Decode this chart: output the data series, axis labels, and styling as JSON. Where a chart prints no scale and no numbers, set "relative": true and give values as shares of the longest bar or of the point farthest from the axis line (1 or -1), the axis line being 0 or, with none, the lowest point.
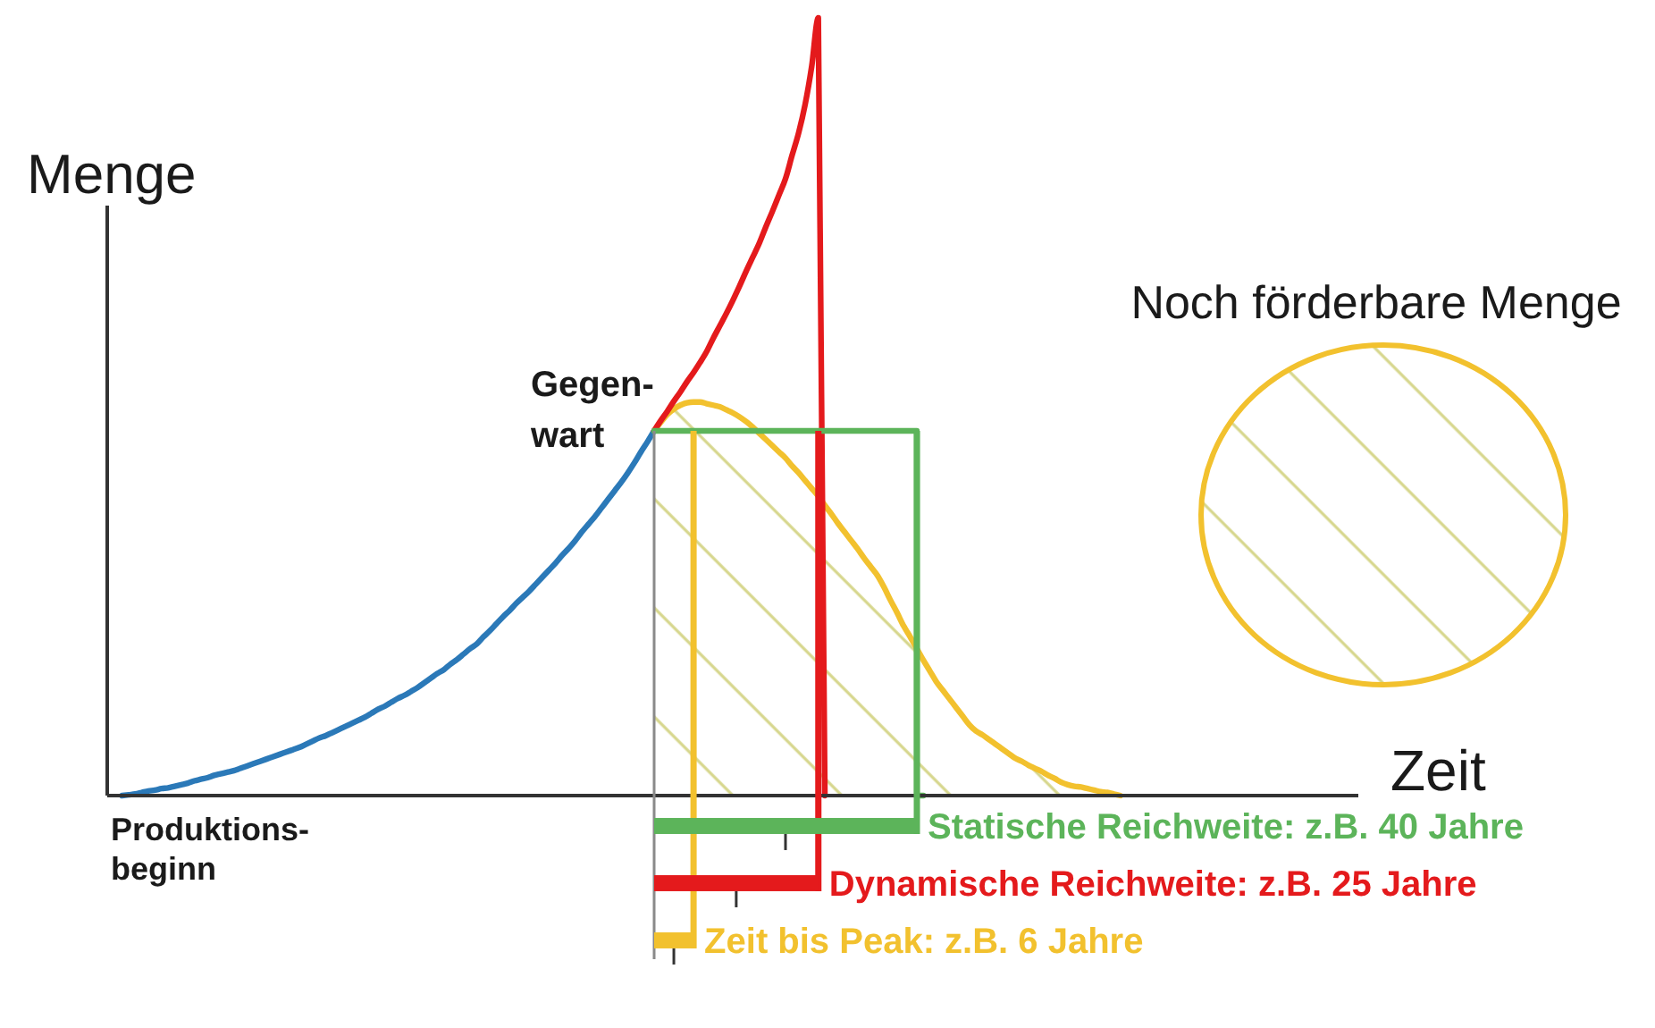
{
  "chart_data": [
    {
      "type": "line",
      "relative": true,
      "xlabel": "Zeit",
      "ylabel": "Menge",
      "categories": [
        null,
        null,
        null,
        null,
        null,
        null,
        null,
        null,
        null,
        null,
        null,
        null,
        null,
        null,
        null,
        null,
        null,
        null,
        null,
        null,
        null,
        null,
        null,
        null,
        null,
        null,
        null,
        null,
        null,
        null,
        null,
        null,
        null,
        null,
        null,
        null,
        null,
        null,
        null,
        null,
        null,
        null,
        null,
        null,
        null,
        null,
        null,
        null,
        null,
        null,
        null,
        null,
        null,
        null,
        null,
        null,
        null,
        null,
        null,
        null,
        null,
        null,
        null,
        null,
        null,
        null,
        null,
        null,
        null,
        null,
        null,
        null,
        null,
        null,
        null,
        null,
        null,
        null,
        null,
        null,
        null,
        null,
        null,
        null,
        null,
        null,
        null,
        null,
        null,
        null,
        null,
        null,
        null,
        null,
        null,
        null,
        null,
        null,
        null,
        null,
        null,
        null,
        null,
        null,
        null,
        null,
        null,
        null,
        null,
        null,
        null,
        null,
        null,
        null,
        null,
        null,
        null,
        null,
        null,
        null,
        null,
        null,
        null,
        null,
        null,
        null,
        null,
        null,
        null,
        null,
        null,
        null,
        null,
        null,
        null,
        null,
        null,
        null,
        null,
        null,
        null,
        null,
        null,
        null,
        null,
        null,
        null,
        null,
        null,
        null,
        null,
        null,
        null,
        null
      ],
      "series": [
        {
          "type": "line",
          "color": "#2b79b8",
          "values": [
            null,
            0,
            0.001,
            0.002,
            0.004,
            0.006,
            0.007,
            0.009,
            0.01,
            0.012,
            0.014,
            0.016,
            0.019,
            0.021,
            0.023,
            0.026,
            0.028,
            0.03,
            0.032,
            0.035,
            0.038,
            0.041,
            0.044,
            0.047,
            0.05,
            0.053,
            0.056,
            0.059,
            0.062,
            0.066,
            0.07,
            0.074,
            0.077,
            0.081,
            0.085,
            0.089,
            0.093,
            0.097,
            0.101,
            0.106,
            0.111,
            0.115,
            0.12,
            0.125,
            0.129,
            0.134,
            0.139,
            0.145,
            0.151,
            0.157,
            0.162,
            0.169,
            0.175,
            0.182,
            0.189,
            0.195,
            0.204,
            0.212,
            0.221,
            0.23,
            0.238,
            0.247,
            0.255,
            0.263,
            0.272,
            0.281,
            0.29,
            0.299,
            0.309,
            0.318,
            0.328,
            0.339,
            0.349,
            0.359,
            0.37,
            0.381,
            0.392,
            0.403,
            0.415,
            0.428,
            0.442,
            0.455,
            0.469,
            null,
            null,
            null,
            null,
            null,
            null,
            null,
            null,
            null,
            null,
            null,
            null,
            null,
            null,
            null,
            null,
            null,
            null,
            null,
            null,
            null,
            null,
            null,
            null,
            null,
            null,
            null,
            null,
            null,
            null,
            null,
            null,
            null,
            null,
            null,
            null,
            null,
            null,
            null,
            null,
            null,
            null,
            null,
            null,
            null,
            null,
            null,
            null,
            null,
            null,
            null,
            null,
            null,
            null,
            null,
            null,
            null,
            null,
            null,
            null,
            null,
            null,
            null,
            null,
            null,
            null,
            null,
            null,
            null,
            null,
            null
          ]
        },
        {
          "type": "line",
          "color": "#e41a1c",
          "values": [
            null,
            null,
            null,
            null,
            null,
            null,
            null,
            null,
            null,
            null,
            null,
            null,
            null,
            null,
            null,
            null,
            null,
            null,
            null,
            null,
            null,
            null,
            null,
            null,
            null,
            null,
            null,
            null,
            null,
            null,
            null,
            null,
            null,
            null,
            null,
            null,
            null,
            null,
            null,
            null,
            null,
            null,
            null,
            null,
            null,
            null,
            null,
            null,
            null,
            null,
            null,
            null,
            null,
            null,
            null,
            null,
            null,
            null,
            null,
            null,
            null,
            null,
            null,
            null,
            null,
            null,
            null,
            null,
            null,
            null,
            null,
            null,
            null,
            null,
            null,
            null,
            null,
            null,
            null,
            null,
            null,
            null,
            0.469,
            0.482,
            0.494,
            0.507,
            0.519,
            0.532,
            0.544,
            0.557,
            0.571,
            0.588,
            0.604,
            0.62,
            0.637,
            0.655,
            0.674,
            0.692,
            0.71,
            0.731,
            0.751,
            0.772,
            0.793,
            0.823,
            0.852,
            0.889,
            0.938,
            1,
            0,
            null,
            null,
            null,
            null,
            null,
            null,
            null,
            null,
            null,
            null,
            null,
            null,
            null,
            null,
            null,
            null,
            null,
            null,
            null,
            null,
            null,
            null,
            null,
            null,
            null,
            null,
            null,
            null,
            null,
            null,
            null,
            null,
            null,
            null,
            null,
            null,
            null,
            null,
            null,
            null,
            null,
            null,
            null,
            null,
            null
          ]
        },
        {
          "type": "area",
          "color": "#f2c12e",
          "values": [
            null,
            null,
            null,
            null,
            null,
            null,
            null,
            null,
            null,
            null,
            null,
            null,
            null,
            null,
            null,
            null,
            null,
            null,
            null,
            null,
            null,
            null,
            null,
            null,
            null,
            null,
            null,
            null,
            null,
            null,
            null,
            null,
            null,
            null,
            null,
            null,
            null,
            null,
            null,
            null,
            null,
            null,
            null,
            null,
            null,
            null,
            null,
            null,
            null,
            null,
            null,
            null,
            null,
            null,
            null,
            null,
            null,
            null,
            null,
            null,
            null,
            null,
            null,
            null,
            null,
            null,
            null,
            null,
            null,
            null,
            null,
            null,
            null,
            null,
            null,
            null,
            null,
            null,
            null,
            null,
            null,
            null,
            0.469,
            0.48,
            0.49,
            0.497,
            0.502,
            0.505,
            0.506,
            0.506,
            0.504,
            0.502,
            0.5,
            0.496,
            0.492,
            0.487,
            0.481,
            0.474,
            0.466,
            0.458,
            0.45,
            0.442,
            0.434,
            0.424,
            0.415,
            0.405,
            0.395,
            0.385,
            0.373,
            0.362,
            0.35,
            0.339,
            0.328,
            0.317,
            0.305,
            0.294,
            0.283,
            0.268,
            0.251,
            0.235,
            0.218,
            0.204,
            0.189,
            0.174,
            0.16,
            0.146,
            0.135,
            0.124,
            0.113,
            0.102,
            0.091,
            0.083,
            0.078,
            0.072,
            0.066,
            0.06,
            0.054,
            0.048,
            0.044,
            0.039,
            0.035,
            0.031,
            0.026,
            0.022,
            0.017,
            0.014,
            0.012,
            0.011,
            0.009,
            0.007,
            0.005,
            0.004,
            0.002,
            0
          ]
        },
        {
          "type": "step",
          "color": "#5cb45a",
          "values": [
            null,
            null,
            null,
            null,
            null,
            null,
            null,
            null,
            null,
            null,
            null,
            null,
            null,
            null,
            null,
            null,
            null,
            null,
            null,
            null,
            null,
            null,
            null,
            null,
            null,
            null,
            null,
            null,
            null,
            null,
            null,
            null,
            null,
            null,
            null,
            null,
            null,
            null,
            null,
            null,
            null,
            null,
            null,
            null,
            null,
            null,
            null,
            null,
            null,
            null,
            null,
            null,
            null,
            null,
            null,
            null,
            null,
            null,
            null,
            null,
            null,
            null,
            null,
            null,
            null,
            null,
            null,
            null,
            null,
            null,
            null,
            null,
            null,
            null,
            null,
            null,
            null,
            null,
            null,
            null,
            null,
            null,
            0.469,
            0.469,
            0.469,
            0.469,
            0.469,
            0.469,
            0.469,
            0.469,
            0.469,
            0.469,
            0.469,
            0.469,
            0.469,
            0.469,
            0.469,
            0.469,
            0.469,
            0.469,
            0.469,
            0.469,
            0.469,
            0.469,
            0.469,
            0.469,
            0.469,
            0.469,
            0.469,
            0.469,
            0.469,
            0.469,
            0.469,
            0.469,
            0.469,
            0.469,
            0.469,
            0.469,
            0.469,
            0.469,
            0.469,
            0.469,
            0.469,
            0,
            null,
            null,
            null,
            null,
            null,
            null,
            null,
            null,
            null,
            null,
            null,
            null,
            null,
            null,
            null,
            null,
            null,
            null,
            null,
            null,
            null,
            null,
            null,
            null,
            null,
            null,
            null,
            null,
            null,
            null
          ]
        }
      ],
      "annotations": [
        "Gegen-\nwart",
        "Produktions-\nbeginn",
        "Noch förderbare Menge"
      ]
    },
    {
      "type": "bar",
      "orientation": "horizontal",
      "categories": [
        null,
        null,
        null
      ],
      "values": [
        40,
        25,
        6
      ],
      "colors": [
        "#5cb45a",
        "#e41a1c",
        "#f2c12e"
      ],
      "xlim": [
        0,
        40
      ],
      "value_labels": [
        "Statische Reichweite: z.B. 40 Jahre",
        "Dynamische Reichweite: z.B. 25 Jahre",
        "Zeit bis Peak: z.B. 6 Jahre"
      ],
      "ref_lines": [
        {
          "axis": "x",
          "value": 6,
          "color": "#f2c12e"
        },
        {
          "axis": "x",
          "value": 25,
          "color": "#e41a1c"
        },
        {
          "axis": "x",
          "value": 40,
          "color": "#5cb45a"
        }
      ]
    }
  ]
}
